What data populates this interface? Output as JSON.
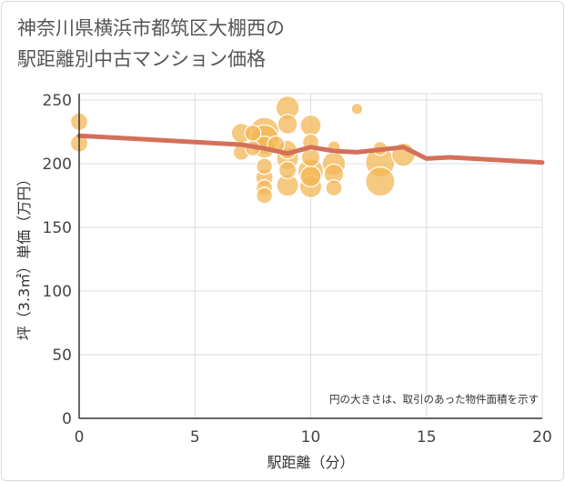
{
  "title_line1": "神奈川県横浜市都筑区大棚西の",
  "title_line2": "駅距離別中古マンション価格",
  "colors": {
    "bubble_fill": "#f3b755",
    "bubble_stroke": "#ffffff",
    "line": "#d4705a",
    "grid": "#d9dde3",
    "axis": "#333333"
  },
  "chart_data": {
    "type": "scatter",
    "xlabel": "駅距離（分）",
    "ylabel": "坪（3.3㎡）単価（万円）",
    "xlim": [
      0,
      20
    ],
    "ylim": [
      0,
      255
    ],
    "xticks": [
      "0",
      "5",
      "10",
      "15",
      "20"
    ],
    "yticks": [
      "0",
      "50",
      "100",
      "150",
      "200",
      "250"
    ],
    "annotation": "円の大きさは、取引のあった物件面積を示す",
    "bubbles": [
      {
        "x": 0,
        "y": 233,
        "size": 0.5
      },
      {
        "x": 0,
        "y": 216,
        "size": 0.5
      },
      {
        "x": 7,
        "y": 224,
        "size": 0.6
      },
      {
        "x": 7,
        "y": 209,
        "size": 0.45
      },
      {
        "x": 7.5,
        "y": 224,
        "size": 0.45
      },
      {
        "x": 7.5,
        "y": 212,
        "size": 0.4
      },
      {
        "x": 8,
        "y": 225,
        "size": 1.0
      },
      {
        "x": 8,
        "y": 219,
        "size": 1.0
      },
      {
        "x": 8,
        "y": 213,
        "size": 0.7
      },
      {
        "x": 8,
        "y": 198,
        "size": 0.45
      },
      {
        "x": 8,
        "y": 189,
        "size": 0.5
      },
      {
        "x": 8,
        "y": 181,
        "size": 0.45
      },
      {
        "x": 8,
        "y": 175,
        "size": 0.45
      },
      {
        "x": 8.5,
        "y": 215,
        "size": 0.5
      },
      {
        "x": 9,
        "y": 244,
        "size": 0.75
      },
      {
        "x": 9,
        "y": 231,
        "size": 0.6
      },
      {
        "x": 9,
        "y": 211,
        "size": 0.55
      },
      {
        "x": 9,
        "y": 204,
        "size": 0.7
      },
      {
        "x": 9,
        "y": 195,
        "size": 0.5
      },
      {
        "x": 9,
        "y": 183,
        "size": 0.7
      },
      {
        "x": 10,
        "y": 230,
        "size": 0.65
      },
      {
        "x": 10,
        "y": 217,
        "size": 0.45
      },
      {
        "x": 10,
        "y": 205,
        "size": 0.55
      },
      {
        "x": 10,
        "y": 194,
        "size": 0.85
      },
      {
        "x": 10,
        "y": 190,
        "size": 0.65
      },
      {
        "x": 10,
        "y": 182,
        "size": 0.7
      },
      {
        "x": 11,
        "y": 213,
        "size": 0.3
      },
      {
        "x": 11,
        "y": 200,
        "size": 0.75
      },
      {
        "x": 11,
        "y": 192,
        "size": 0.6
      },
      {
        "x": 11,
        "y": 181,
        "size": 0.45
      },
      {
        "x": 12,
        "y": 243,
        "size": 0.25
      },
      {
        "x": 13,
        "y": 212,
        "size": 0.35
      },
      {
        "x": 13,
        "y": 201,
        "size": 1.0
      },
      {
        "x": 13,
        "y": 186,
        "size": 1.0
      },
      {
        "x": 14,
        "y": 207,
        "size": 0.75
      }
    ],
    "trend": {
      "x": [
        0,
        7,
        8,
        9,
        10,
        11,
        12,
        13,
        14,
        15,
        16,
        20
      ],
      "y": [
        222,
        215,
        212,
        208,
        213,
        210,
        209,
        211,
        213,
        204,
        205,
        201
      ]
    }
  }
}
